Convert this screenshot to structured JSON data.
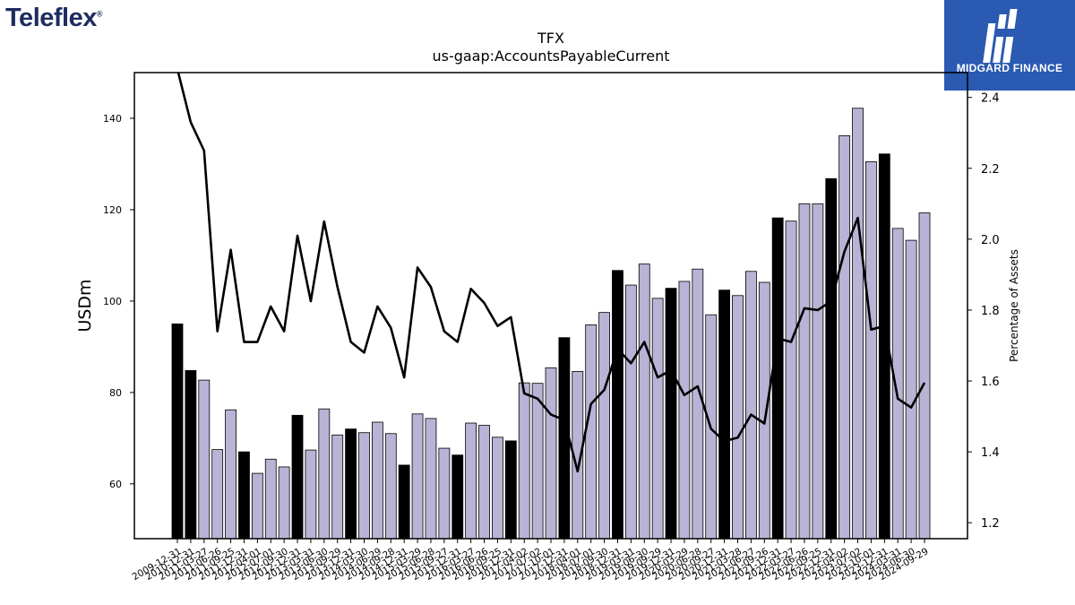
{
  "branding": {
    "company_logo_text": "Teleflex",
    "publisher_logo_text": "MIDGARD FINANCE"
  },
  "chart_data": {
    "type": "bar",
    "title": "TFX",
    "subtitle": "us-gaap:AccountsPayableCurrent",
    "ylabel": "USDm",
    "y2label": "Percentage of Assets",
    "ylim": [
      48,
      150
    ],
    "y2lim": [
      1.155,
      2.47
    ],
    "yticks": [
      60,
      80,
      100,
      120,
      140
    ],
    "y2ticks": [
      1.2,
      1.4,
      1.6,
      1.8,
      2.0,
      2.2,
      2.4
    ],
    "colors": {
      "annual": "#000000",
      "quarterly": "#b8b4d6",
      "line": "#000000"
    },
    "categories": [
      "2009-12-31",
      "2010-12-31",
      "2011-03-27",
      "2011-06-26",
      "2011-09-25",
      "2011-12-31",
      "2012-04-01",
      "2012-07-01",
      "2012-09-30",
      "2012-12-31",
      "2013-03-31",
      "2013-06-30",
      "2013-09-29",
      "2013-12-31",
      "2014-03-30",
      "2014-06-29",
      "2014-09-28",
      "2014-12-31",
      "2015-03-29",
      "2015-06-28",
      "2015-09-27",
      "2015-12-31",
      "2016-03-27",
      "2016-06-26",
      "2016-09-25",
      "2016-12-31",
      "2017-04-02",
      "2017-07-02",
      "2017-10-01",
      "2017-12-31",
      "2018-04-01",
      "2018-07-01",
      "2018-09-30",
      "2018-12-31",
      "2019-03-31",
      "2019-06-30",
      "2019-09-29",
      "2019-12-31",
      "2020-03-29",
      "2020-06-28",
      "2020-09-27",
      "2020-12-31",
      "2021-03-28",
      "2021-06-27",
      "2021-09-26",
      "2021-12-31",
      "2022-03-27",
      "2022-06-26",
      "2022-09-25",
      "2022-12-31",
      "2023-04-02",
      "2023-07-02",
      "2023-10-01",
      "2023-12-31",
      "2024-03-31",
      "2024-06-30",
      "2024-09-29"
    ],
    "bar_types": [
      "annual",
      "annual",
      "quarterly",
      "quarterly",
      "quarterly",
      "annual",
      "quarterly",
      "quarterly",
      "quarterly",
      "annual",
      "quarterly",
      "quarterly",
      "quarterly",
      "annual",
      "quarterly",
      "quarterly",
      "quarterly",
      "annual",
      "quarterly",
      "quarterly",
      "quarterly",
      "annual",
      "quarterly",
      "quarterly",
      "quarterly",
      "annual",
      "quarterly",
      "quarterly",
      "quarterly",
      "annual",
      "quarterly",
      "quarterly",
      "quarterly",
      "annual",
      "quarterly",
      "quarterly",
      "quarterly",
      "annual",
      "quarterly",
      "quarterly",
      "quarterly",
      "annual",
      "quarterly",
      "quarterly",
      "quarterly",
      "annual",
      "quarterly",
      "quarterly",
      "quarterly",
      "annual",
      "quarterly",
      "quarterly",
      "quarterly",
      "annual",
      "quarterly",
      "quarterly",
      "quarterly"
    ],
    "series": [
      {
        "name": "",
        "axis": "left",
        "kind": "bar",
        "values": [
          95.0,
          84.8,
          82.7,
          67.5,
          76.2,
          67.0,
          62.3,
          65.4,
          63.7,
          75.0,
          67.4,
          76.4,
          70.7,
          72.0,
          71.2,
          73.5,
          71.0,
          64.1,
          75.3,
          74.3,
          67.8,
          66.3,
          73.3,
          72.8,
          70.2,
          69.4,
          82.1,
          82.0,
          85.4,
          92.0,
          84.6,
          94.8,
          97.5,
          106.7,
          103.5,
          108.1,
          100.6,
          102.8,
          104.3,
          107.0,
          97.0,
          102.4,
          101.2,
          106.5,
          104.1,
          118.2,
          117.5,
          121.3,
          121.3,
          126.8,
          136.2,
          142.2,
          130.5,
          132.2,
          115.9,
          113.3,
          119.3
        ]
      },
      {
        "name": "",
        "axis": "right",
        "kind": "line",
        "values": [
          2.48,
          2.33,
          2.25,
          1.74,
          1.97,
          1.71,
          1.71,
          1.81,
          1.74,
          2.01,
          1.825,
          2.05,
          1.865,
          1.71,
          1.68,
          1.81,
          1.75,
          1.61,
          1.92,
          1.865,
          1.74,
          1.71,
          1.86,
          1.82,
          1.755,
          1.78,
          1.565,
          1.55,
          1.505,
          1.49,
          1.345,
          1.535,
          1.575,
          1.69,
          1.65,
          1.71,
          1.61,
          1.63,
          1.56,
          1.585,
          1.465,
          1.43,
          1.44,
          1.505,
          1.48,
          1.72,
          1.71,
          1.805,
          1.8,
          1.825,
          1.965,
          2.06,
          1.745,
          1.755,
          1.55,
          1.525,
          1.595
        ]
      }
    ]
  }
}
